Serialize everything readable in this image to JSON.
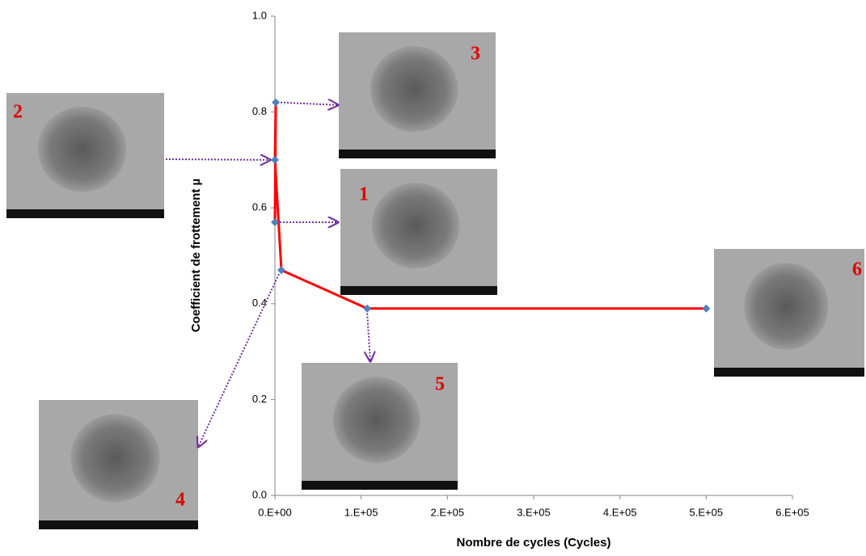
{
  "chart_data": {
    "type": "line",
    "x_label": "Nombre de cycles (Cycles)",
    "y_label": "Coefficient de frottement µ",
    "series": [
      {
        "color": "#ff0000",
        "marker_color": "#4f81bd",
        "x": [
          0,
          1000,
          0,
          7500,
          107000,
          500000
        ],
        "values": [
          0.57,
          0.82,
          0.7,
          0.47,
          0.39,
          0.39
        ]
      }
    ],
    "xlim": [
      0,
      600000
    ],
    "xticks": [
      {
        "value": 0,
        "label": "0.E+00"
      },
      {
        "value": 100000,
        "label": "1.E+05"
      },
      {
        "value": 200000,
        "label": "2.E+05"
      },
      {
        "value": 300000,
        "label": "3.E+05"
      },
      {
        "value": 400000,
        "label": "4.E+05"
      },
      {
        "value": 500000,
        "label": "5.E+05"
      },
      {
        "value": 600000,
        "label": "6.E+05"
      }
    ],
    "ylim": [
      0,
      1
    ],
    "yticks": [
      {
        "value": 0,
        "label": "0.0"
      },
      {
        "value": 0.2,
        "label": "0.2"
      },
      {
        "value": 0.4,
        "label": "0.4"
      },
      {
        "value": 0.6,
        "label": "0.6"
      },
      {
        "value": 0.8,
        "label": "0.8"
      },
      {
        "value": 1,
        "label": "1.0"
      }
    ],
    "annotations": [
      "1",
      "2",
      "3",
      "4",
      "5",
      "6"
    ]
  }
}
